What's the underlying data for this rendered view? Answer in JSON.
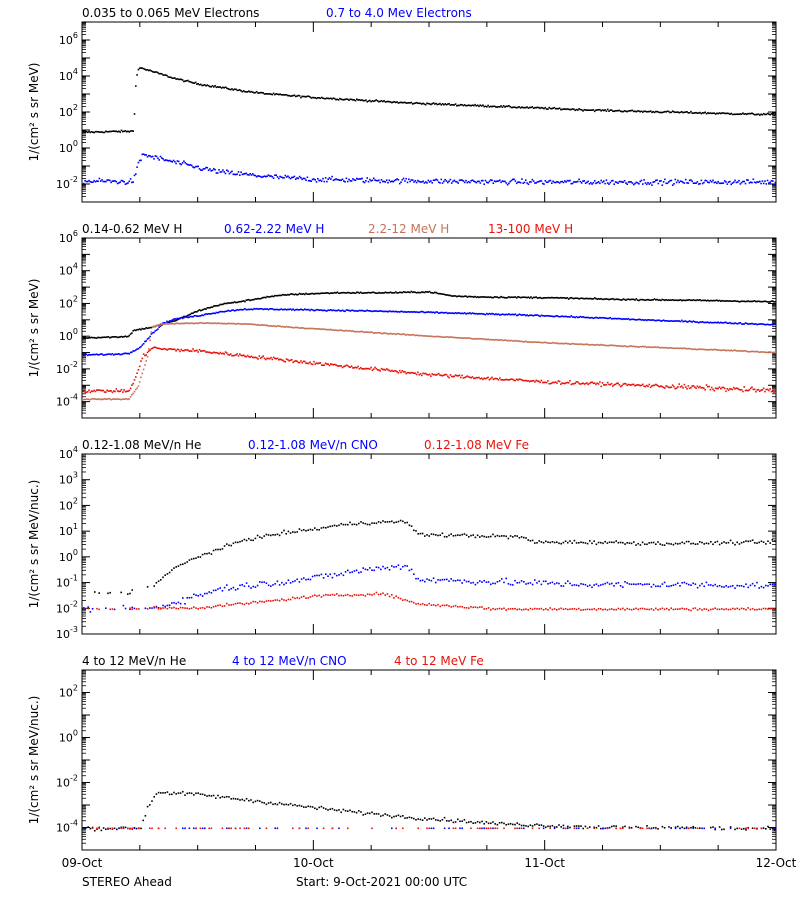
{
  "chart_data": [
    {
      "type": "scatter",
      "ylabel": "1/(cm² s sr MeV)",
      "ylim": [
        -3,
        7
      ],
      "yscale": "log",
      "ylabel_exps": [
        -2,
        0,
        2,
        4,
        6
      ],
      "xlim": [
        0,
        3
      ],
      "grid": false,
      "series": [
        {
          "name": "0.035 to 0.065 MeV Electrons",
          "color": "#000000",
          "pts": [
            [
              0,
              0.92
            ],
            [
              0.05,
              0.93
            ],
            [
              0.1,
              0.95
            ],
            [
              0.15,
              0.96
            ],
            [
              0.2,
              0.97
            ],
            [
              0.22,
              0.98
            ],
            [
              0.23,
              3.8
            ],
            [
              0.24,
              4.4
            ],
            [
              0.25,
              4.5
            ],
            [
              0.3,
              4.3
            ],
            [
              0.4,
              3.9
            ],
            [
              0.5,
              3.6
            ],
            [
              0.6,
              3.4
            ],
            [
              0.7,
              3.2
            ],
            [
              0.8,
              3.05
            ],
            [
              0.9,
              2.95
            ],
            [
              1.0,
              2.85
            ],
            [
              1.2,
              2.7
            ],
            [
              1.4,
              2.55
            ],
            [
              1.6,
              2.45
            ],
            [
              1.8,
              2.35
            ],
            [
              2.0,
              2.25
            ],
            [
              2.2,
              2.15
            ],
            [
              2.4,
              2.08
            ],
            [
              2.6,
              2.02
            ],
            [
              2.8,
              1.95
            ],
            [
              3.0,
              1.9
            ]
          ],
          "noise": 0.05
        },
        {
          "name": "0.7 to 4.0 Mev Electrons",
          "color": "#0000ff",
          "pts": [
            [
              0,
              -1.8
            ],
            [
              0.1,
              -1.8
            ],
            [
              0.2,
              -1.85
            ],
            [
              0.22,
              -1.75
            ],
            [
              0.24,
              -0.9
            ],
            [
              0.26,
              -0.3
            ],
            [
              0.3,
              -0.45
            ],
            [
              0.4,
              -0.75
            ],
            [
              0.5,
              -1.05
            ],
            [
              0.6,
              -1.3
            ],
            [
              0.8,
              -1.55
            ],
            [
              1.0,
              -1.7
            ],
            [
              1.5,
              -1.8
            ],
            [
              2.0,
              -1.85
            ],
            [
              2.5,
              -1.85
            ],
            [
              3.0,
              -1.85
            ]
          ],
          "noise": 0.14
        }
      ]
    },
    {
      "type": "scatter",
      "ylabel": "1/(cm² s sr MeV)",
      "ylim": [
        -5,
        6
      ],
      "yscale": "log",
      "ylabel_exps": [
        -4,
        -2,
        0,
        2,
        4,
        6
      ],
      "xlim": [
        0,
        3
      ],
      "grid": false,
      "series": [
        {
          "name": "0.14-0.62 MeV H",
          "color": "#000000",
          "pts": [
            [
              0,
              -0.05
            ],
            [
              0.15,
              0
            ],
            [
              0.2,
              0.05
            ],
            [
              0.22,
              0.4
            ],
            [
              0.3,
              0.6
            ],
            [
              0.4,
              1.0
            ],
            [
              0.5,
              1.6
            ],
            [
              0.6,
              2.0
            ],
            [
              0.7,
              2.2
            ],
            [
              0.8,
              2.45
            ],
            [
              0.9,
              2.6
            ],
            [
              1.0,
              2.65
            ],
            [
              1.1,
              2.7
            ],
            [
              1.3,
              2.7
            ],
            [
              1.5,
              2.75
            ],
            [
              1.6,
              2.5
            ],
            [
              1.7,
              2.45
            ],
            [
              2.0,
              2.4
            ],
            [
              2.3,
              2.3
            ],
            [
              2.6,
              2.25
            ],
            [
              2.8,
              2.2
            ],
            [
              3.0,
              2.15
            ]
          ],
          "noise": 0.04
        },
        {
          "name": "0.62-2.22 MeV H",
          "color": "#0000ff",
          "pts": [
            [
              0,
              -1.1
            ],
            [
              0.15,
              -1.05
            ],
            [
              0.2,
              -1.0
            ],
            [
              0.25,
              -0.6
            ],
            [
              0.3,
              0.2
            ],
            [
              0.35,
              0.85
            ],
            [
              0.4,
              1.1
            ],
            [
              0.5,
              1.3
            ],
            [
              0.6,
              1.55
            ],
            [
              0.7,
              1.7
            ],
            [
              0.8,
              1.7
            ],
            [
              1.0,
              1.65
            ],
            [
              1.2,
              1.6
            ],
            [
              1.5,
              1.5
            ],
            [
              2.0,
              1.3
            ],
            [
              2.5,
              1.0
            ],
            [
              3.0,
              0.75
            ]
          ],
          "noise": 0.04
        },
        {
          "name": "2.2-12 MeV H",
          "color": "#c6745a",
          "pts": [
            [
              0,
              -3.8
            ],
            [
              0.2,
              -3.8
            ],
            [
              0.24,
              -3.0
            ],
            [
              0.28,
              -1.2
            ],
            [
              0.3,
              0.6
            ],
            [
              0.35,
              0.8
            ],
            [
              0.5,
              0.85
            ],
            [
              0.7,
              0.8
            ],
            [
              1.0,
              0.5
            ],
            [
              1.5,
              0.05
            ],
            [
              2.0,
              -0.35
            ],
            [
              2.5,
              -0.65
            ],
            [
              3.0,
              -0.95
            ]
          ],
          "noise": 0.03
        },
        {
          "name": "13-100 MeV H",
          "color": "#e8140c",
          "pts": [
            [
              0,
              -3.3
            ],
            [
              0.2,
              -3.3
            ],
            [
              0.22,
              -2.8
            ],
            [
              0.26,
              -1.2
            ],
            [
              0.3,
              -0.65
            ],
            [
              0.35,
              -0.75
            ],
            [
              0.5,
              -0.85
            ],
            [
              0.7,
              -1.15
            ],
            [
              1.0,
              -1.6
            ],
            [
              1.5,
              -2.3
            ],
            [
              2.0,
              -2.75
            ],
            [
              2.5,
              -3.0
            ],
            [
              3.0,
              -3.3
            ]
          ],
          "noise": 0.1
        }
      ]
    },
    {
      "type": "scatter",
      "ylabel": "1/(cm² s sr MeV/nuc.)",
      "ylim": [
        -3,
        4
      ],
      "yscale": "log",
      "ylabel_exps": [
        -3,
        -2,
        -1,
        0,
        1,
        2,
        3,
        4
      ],
      "xlim": [
        0,
        3
      ],
      "grid": false,
      "series": [
        {
          "name": "0.12-1.08 MeV/n He",
          "color": "#000000",
          "pts": [
            [
              0,
              -1.35
            ],
            [
              0.2,
              -1.35
            ],
            [
              0.3,
              -1.1
            ],
            [
              0.4,
              -0.4
            ],
            [
              0.5,
              0.05
            ],
            [
              0.6,
              0.35
            ],
            [
              0.7,
              0.7
            ],
            [
              0.8,
              0.85
            ],
            [
              0.9,
              1.0
            ],
            [
              1.0,
              1.1
            ],
            [
              1.1,
              1.25
            ],
            [
              1.2,
              1.35
            ],
            [
              1.4,
              1.4
            ],
            [
              1.45,
              0.9
            ],
            [
              1.7,
              0.85
            ],
            [
              1.9,
              0.8
            ],
            [
              1.95,
              0.6
            ],
            [
              2.2,
              0.6
            ],
            [
              2.5,
              0.55
            ],
            [
              3.0,
              0.6
            ]
          ],
          "noise": 0.07
        },
        {
          "name": "0.12-1.08 MeV/n CNO",
          "color": "#0000ff",
          "pts": [
            [
              0,
              -2.0
            ],
            [
              0.3,
              -2.0
            ],
            [
              0.45,
              -1.6
            ],
            [
              0.6,
              -1.2
            ],
            [
              0.8,
              -1.0
            ],
            [
              1.0,
              -0.8
            ],
            [
              1.2,
              -0.5
            ],
            [
              1.4,
              -0.3
            ],
            [
              1.45,
              -0.85
            ],
            [
              1.8,
              -0.95
            ],
            [
              2.2,
              -1.05
            ],
            [
              2.6,
              -1.05
            ],
            [
              3.0,
              -1.1
            ]
          ],
          "noise": 0.13
        },
        {
          "name": "0.12-1.08 MeV Fe",
          "color": "#e8140c",
          "pts": [
            [
              0,
              -2.0
            ],
            [
              0.5,
              -1.95
            ],
            [
              0.8,
              -1.7
            ],
            [
              1.0,
              -1.5
            ],
            [
              1.3,
              -1.4
            ],
            [
              1.45,
              -1.8
            ],
            [
              1.8,
              -2.0
            ],
            [
              3.0,
              -2.0
            ]
          ],
          "noise": 0.05
        }
      ]
    },
    {
      "type": "scatter",
      "ylabel": "1/(cm² s sr MeV/nuc.)",
      "ylim": [
        -5,
        3
      ],
      "yscale": "log",
      "ylabel_exps": [
        -4,
        -2,
        0,
        2
      ],
      "xlim": [
        0,
        3
      ],
      "grid": false,
      "series": [
        {
          "name": "4 to 12 MeV/n He",
          "color": "#000000",
          "pts": [
            [
              0,
              -4.0
            ],
            [
              0.25,
              -4.0
            ],
            [
              0.28,
              -3.1
            ],
            [
              0.32,
              -2.4
            ],
            [
              0.5,
              -2.5
            ],
            [
              0.8,
              -2.85
            ],
            [
              1.1,
              -3.2
            ],
            [
              1.4,
              -3.5
            ],
            [
              1.8,
              -3.8
            ],
            [
              2.2,
              -3.95
            ],
            [
              3.0,
              -4.0
            ]
          ],
          "noise": 0.08
        },
        {
          "name": "4 to 12 MeV/n CNO",
          "color": "#0000ff",
          "pts": [
            [
              0,
              -4.0
            ],
            [
              3.0,
              -4.0
            ]
          ],
          "noise": 0.0
        },
        {
          "name": "4 to 12 MeV Fe",
          "color": "#e8140c",
          "pts": [
            [
              0,
              -4.0
            ],
            [
              3.0,
              -4.0
            ]
          ],
          "noise": 0.0
        }
      ]
    }
  ],
  "x_ticks": [
    "09-Oct",
    "10-Oct",
    "11-Oct",
    "12-Oct"
  ],
  "footer": {
    "spacecraft": "STEREO Ahead",
    "start": "Start:  9-Oct-2021 00:00 UTC"
  }
}
